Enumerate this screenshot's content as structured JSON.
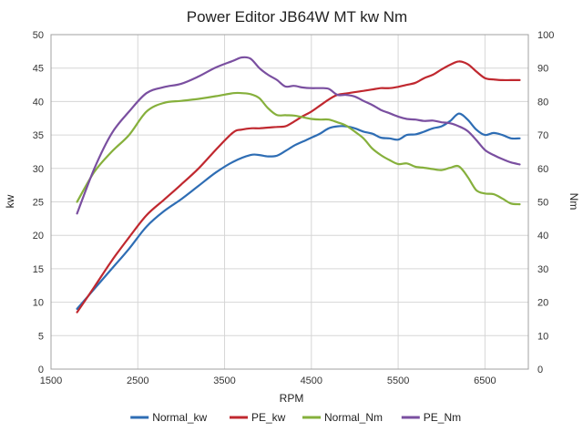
{
  "chart_data": {
    "type": "line",
    "title": "Power Editor  JB64W MT  kw Nm",
    "xlabel": "RPM",
    "ylabel_left": "kw",
    "ylabel_right": "Nm",
    "xlim": [
      1500,
      7000
    ],
    "ylim_left": [
      0,
      50
    ],
    "ylim_right": [
      0,
      100
    ],
    "x_ticks": [
      1500,
      2500,
      3500,
      4500,
      5500,
      6500
    ],
    "y_ticks_left": [
      0,
      5,
      10,
      15,
      20,
      25,
      30,
      35,
      40,
      45,
      50
    ],
    "y_ticks_right": [
      0,
      10,
      20,
      30,
      40,
      50,
      60,
      70,
      80,
      90,
      100
    ],
    "grid": true,
    "legend_position": "bottom",
    "series": [
      {
        "name": "Normal_kw",
        "axis": "left",
        "color": "#2e6db4",
        "x": [
          1800,
          2000,
          2200,
          2400,
          2600,
          2800,
          3000,
          3200,
          3400,
          3600,
          3800,
          3900,
          4000,
          4100,
          4200,
          4300,
          4400,
          4500,
          4600,
          4700,
          4800,
          4900,
          5000,
          5100,
          5200,
          5300,
          5400,
          5500,
          5600,
          5700,
          5800,
          5900,
          6000,
          6100,
          6200,
          6300,
          6400,
          6500,
          6600,
          6700,
          6800,
          6900
        ],
        "values": [
          9.0,
          12.0,
          15.0,
          18.0,
          21.3,
          23.6,
          25.4,
          27.4,
          29.4,
          31.0,
          32.0,
          32.0,
          31.8,
          31.9,
          32.6,
          33.4,
          34.0,
          34.6,
          35.2,
          36.0,
          36.3,
          36.3,
          36.0,
          35.5,
          35.2,
          34.6,
          34.5,
          34.3,
          35.0,
          35.1,
          35.5,
          36.0,
          36.3,
          37.1,
          38.2,
          37.3,
          35.8,
          35.0,
          35.3,
          35.0,
          34.5,
          34.5
        ]
      },
      {
        "name": "PE_kw",
        "axis": "left",
        "color": "#c0282f",
        "x": [
          1800,
          2000,
          2200,
          2400,
          2600,
          2800,
          3000,
          3200,
          3400,
          3600,
          3700,
          3800,
          3900,
          4000,
          4100,
          4200,
          4300,
          4400,
          4500,
          4600,
          4700,
          4800,
          4900,
          5000,
          5100,
          5200,
          5300,
          5400,
          5500,
          5600,
          5700,
          5800,
          5900,
          6000,
          6100,
          6200,
          6300,
          6400,
          6500,
          6600,
          6700,
          6800,
          6900
        ],
        "values": [
          8.5,
          12.3,
          16.2,
          19.7,
          23.0,
          25.3,
          27.6,
          30.0,
          32.8,
          35.4,
          35.8,
          36.0,
          36.0,
          36.1,
          36.2,
          36.3,
          37.0,
          37.8,
          38.5,
          39.4,
          40.3,
          41.0,
          41.2,
          41.4,
          41.6,
          41.8,
          42.0,
          42.0,
          42.2,
          42.5,
          42.8,
          43.5,
          44.0,
          44.8,
          45.5,
          46.0,
          45.6,
          44.5,
          43.5,
          43.3,
          43.2,
          43.2,
          43.2
        ]
      },
      {
        "name": "Normal_Nm",
        "axis": "right",
        "color": "#86b03c",
        "x": [
          1800,
          2000,
          2200,
          2400,
          2600,
          2800,
          3000,
          3200,
          3400,
          3600,
          3700,
          3800,
          3900,
          4000,
          4100,
          4200,
          4300,
          4400,
          4500,
          4600,
          4700,
          4800,
          4900,
          5000,
          5100,
          5200,
          5300,
          5400,
          5500,
          5600,
          5700,
          5800,
          5900,
          6000,
          6100,
          6200,
          6300,
          6400,
          6500,
          6600,
          6700,
          6800,
          6900
        ],
        "values": [
          50.0,
          59.0,
          65.0,
          70.0,
          77.0,
          79.6,
          80.2,
          80.8,
          81.6,
          82.5,
          82.5,
          82.2,
          81.0,
          78.0,
          76.0,
          75.9,
          75.8,
          75.3,
          74.8,
          74.6,
          74.6,
          73.8,
          72.8,
          71.0,
          69.0,
          66.0,
          64.0,
          62.5,
          61.3,
          61.5,
          60.5,
          60.2,
          59.8,
          59.5,
          60.2,
          60.6,
          57.5,
          53.5,
          52.5,
          52.3,
          51.0,
          49.5,
          49.3
        ]
      },
      {
        "name": "PE_Nm",
        "axis": "right",
        "color": "#7a4fa0",
        "x": [
          1800,
          2000,
          2200,
          2400,
          2600,
          2800,
          3000,
          3200,
          3400,
          3600,
          3700,
          3800,
          3900,
          4000,
          4100,
          4200,
          4300,
          4400,
          4500,
          4600,
          4700,
          4800,
          4900,
          5000,
          5100,
          5200,
          5300,
          5400,
          5500,
          5600,
          5700,
          5800,
          5900,
          6000,
          6100,
          6200,
          6300,
          6400,
          6500,
          6600,
          6700,
          6800,
          6900
        ],
        "values": [
          46.5,
          60.0,
          70.5,
          77.0,
          82.5,
          84.3,
          85.3,
          87.5,
          90.2,
          92.2,
          93.2,
          92.8,
          90.0,
          88.0,
          86.5,
          84.5,
          84.7,
          84.2,
          84.0,
          84.0,
          83.8,
          82.0,
          82.0,
          81.5,
          80.2,
          79.0,
          77.5,
          76.5,
          75.5,
          74.8,
          74.6,
          74.2,
          74.3,
          73.8,
          73.5,
          72.6,
          71.2,
          68.5,
          65.5,
          64.0,
          62.8,
          61.8,
          61.2
        ]
      }
    ]
  }
}
